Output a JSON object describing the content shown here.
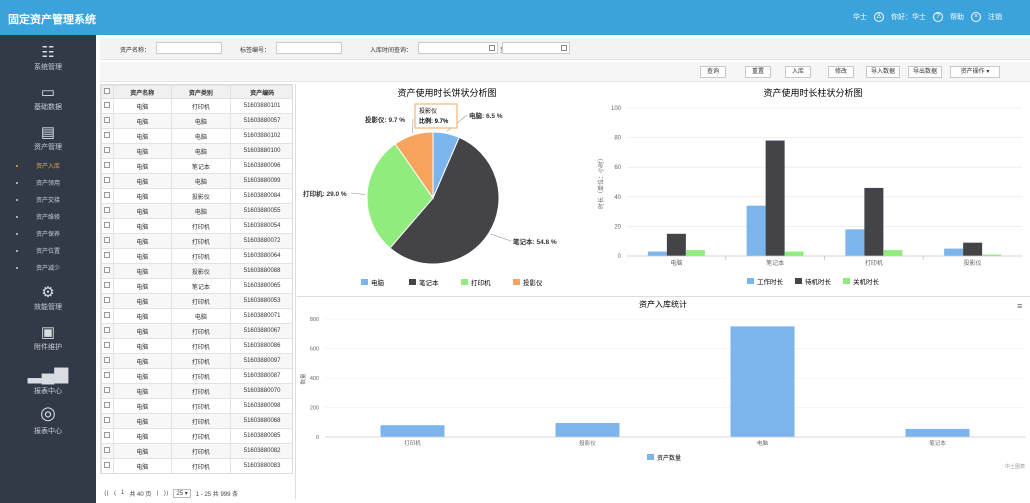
{
  "app_title": "固定资产管理系统",
  "header": {
    "user_name": "华士",
    "greeting": "你好：华士",
    "help": "帮助",
    "logout": "注销"
  },
  "sidebar": {
    "items": [
      {
        "icon": "settings-panel-icon",
        "label": "系统管理"
      },
      {
        "icon": "gamepad-icon",
        "label": "基础数据"
      },
      {
        "icon": "clipboard-icon",
        "label": "资产管理"
      },
      {
        "icon": "gear-icon",
        "label": "效能管理"
      },
      {
        "icon": "calendar-icon",
        "label": "附件维护"
      },
      {
        "icon": "bar-chart-icon",
        "label": "报表中心"
      },
      {
        "icon": "globe-icon",
        "label": "报表中心"
      }
    ],
    "subitems": [
      "资产入库",
      "资产领用",
      "资产交接",
      "资产维修",
      "资产保养",
      "资产位置",
      "资产减少"
    ],
    "active_sub": 0
  },
  "filters": {
    "asset_name_label": "资产名称：",
    "tag_no_label": "标签编号：",
    "in_time_label": "入库时间查询：",
    "to_label": "至："
  },
  "toolbar": [
    "查询",
    "重置",
    "入库",
    "修改",
    "导入数据",
    "导出数据",
    "资产操作"
  ],
  "table": {
    "headers": [
      "资产名称",
      "资产类别",
      "资产编码"
    ],
    "rows": [
      [
        "电脑",
        "打印机",
        "51603880101"
      ],
      [
        "电脑",
        "电脑",
        "51603880057"
      ],
      [
        "电脑",
        "电脑",
        "51603880102"
      ],
      [
        "电脑",
        "电脑",
        "51603880100"
      ],
      [
        "电脑",
        "笔记本",
        "51603880096"
      ],
      [
        "电脑",
        "电脑",
        "51603880099"
      ],
      [
        "电脑",
        "投影仪",
        "51603880084"
      ],
      [
        "电脑",
        "电脑",
        "51603880055"
      ],
      [
        "电脑",
        "打印机",
        "51603880054"
      ],
      [
        "电脑",
        "打印机",
        "51603880072"
      ],
      [
        "电脑",
        "打印机",
        "51603880064"
      ],
      [
        "电脑",
        "投影仪",
        "51603880088"
      ],
      [
        "电脑",
        "笔记本",
        "51603880065"
      ],
      [
        "电脑",
        "打印机",
        "51603880053"
      ],
      [
        "电脑",
        "电脑",
        "51603880071"
      ],
      [
        "电脑",
        "打印机",
        "51603880067"
      ],
      [
        "电脑",
        "打印机",
        "51603880086"
      ],
      [
        "电脑",
        "打印机",
        "51603880097"
      ],
      [
        "电脑",
        "打印机",
        "51603880087"
      ],
      [
        "电脑",
        "打印机",
        "51603880070"
      ],
      [
        "电脑",
        "打印机",
        "51603880098"
      ],
      [
        "电脑",
        "打印机",
        "51603880068"
      ],
      [
        "电脑",
        "打印机",
        "51603880085"
      ],
      [
        "电脑",
        "打印机",
        "51603880082"
      ],
      [
        "电脑",
        "打印机",
        "51603880083"
      ]
    ]
  },
  "pager": {
    "page": "1",
    "total_pages": "共 40 页",
    "page_size": "25",
    "summary": "1 - 25 共 999 条"
  },
  "colors": {
    "blue": "#7cb5ec",
    "dark": "#434348",
    "green": "#90ed7d",
    "orange": "#f7a35c",
    "header": "#3aa3dc",
    "sidebar": "#323a48"
  },
  "chart_data": [
    {
      "type": "pie",
      "title": "资产使用时长饼状分析图",
      "categories": [
        "电脑",
        "笔记本",
        "打印机",
        "投影仪"
      ],
      "values": [
        6.5,
        54.8,
        29.0,
        9.7
      ],
      "labels": [
        "电脑: 6.5 %",
        "笔记本: 54.8 %",
        "打印机: 29.0 %",
        "投影仪: 9.7 %"
      ],
      "tooltip": {
        "name": "投影仪",
        "text": "比例: 9.7%"
      },
      "legend_position": "bottom"
    },
    {
      "type": "bar",
      "title": "资产使用时长柱状分析图",
      "ylabel": "时长（单位：小时）",
      "ylim": [
        0,
        100
      ],
      "yticks": [
        0,
        20,
        40,
        60,
        80,
        100
      ],
      "categories": [
        "电脑",
        "笔记本",
        "打印机",
        "投影仪"
      ],
      "series": [
        {
          "name": "工作时长",
          "values": [
            3,
            34,
            18,
            5
          ]
        },
        {
          "name": "待机时长",
          "values": [
            15,
            78,
            46,
            9
          ]
        },
        {
          "name": "关机时长",
          "values": [
            4,
            3,
            4,
            1
          ]
        }
      ],
      "legend_position": "bottom"
    },
    {
      "type": "bar",
      "title": "资产入库统计",
      "ylabel": "数量",
      "ylim": [
        0,
        800
      ],
      "yticks": [
        0,
        200,
        400,
        600,
        800
      ],
      "categories": [
        "打印机",
        "投影仪",
        "电脑",
        "笔记本"
      ],
      "series": [
        {
          "name": "资产数量",
          "values": [
            80,
            95,
            750,
            55
          ]
        }
      ],
      "legend_position": "bottom",
      "credit": "中土图表"
    }
  ]
}
